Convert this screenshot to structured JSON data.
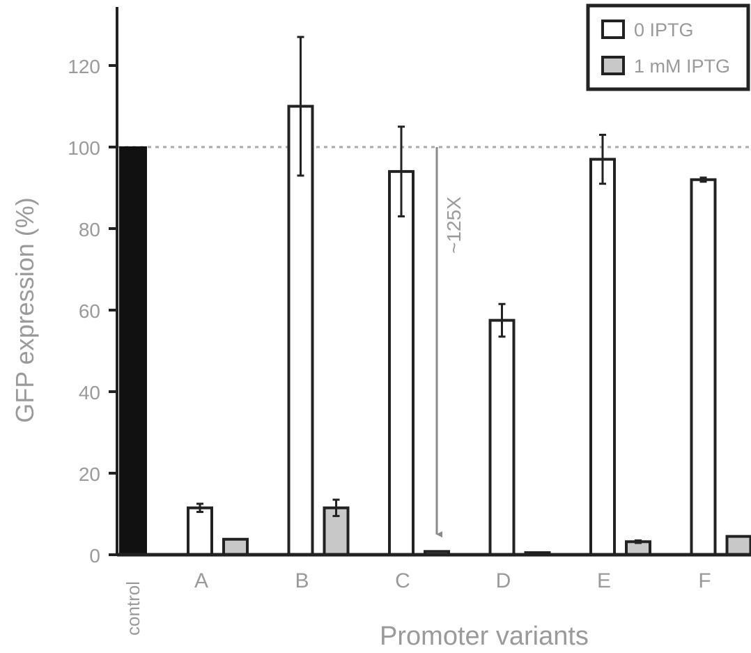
{
  "chart_data": {
    "type": "bar",
    "xlabel": "Promoter variants",
    "ylabel": "GFP expression (%)",
    "ylim": [
      0,
      130
    ],
    "yticks": [
      0,
      20,
      40,
      60,
      80,
      100,
      120
    ],
    "grid": false,
    "legend_position": "top-right",
    "reference_line": 100,
    "control": {
      "label": "control",
      "value": 100,
      "color": "#111111"
    },
    "categories": [
      "A",
      "B",
      "C",
      "D",
      "E",
      "F"
    ],
    "series": [
      {
        "name": "0 IPTG",
        "color": "#ffffff",
        "values": [
          11.5,
          110,
          94,
          57.5,
          97,
          92
        ],
        "errors": [
          1,
          17,
          11,
          4,
          6,
          0.5
        ]
      },
      {
        "name": "1 mM IPTG",
        "color": "#c8c8c8",
        "values": [
          3.8,
          11.5,
          0.8,
          0.4,
          3.2,
          4.5
        ],
        "errors": [
          0,
          2,
          0,
          0,
          0.3,
          0
        ]
      }
    ],
    "annotation": {
      "text": "~125X",
      "category": "C",
      "from": 100,
      "to": 5
    }
  }
}
